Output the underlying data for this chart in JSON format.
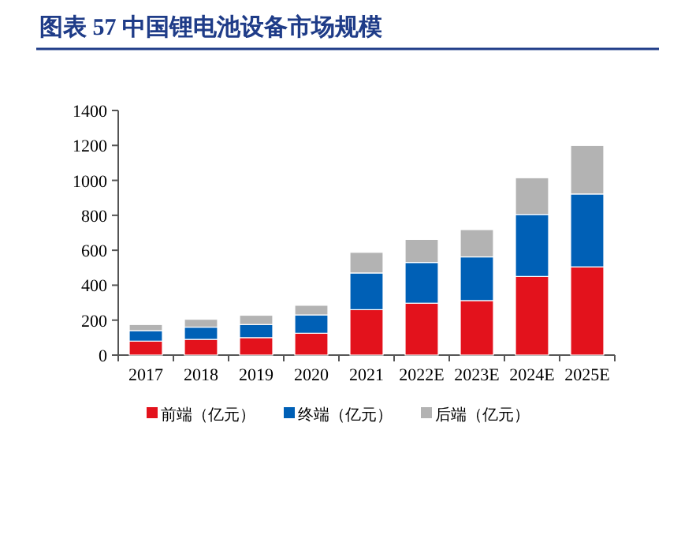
{
  "chart_data": {
    "type": "bar",
    "title": "图表 57 中国锂电池设备市场规模",
    "stacked": true,
    "categories": [
      "2017",
      "2018",
      "2019",
      "2020",
      "2021",
      "2022E",
      "2023E",
      "2024E",
      "2025E"
    ],
    "series": [
      {
        "name": "前端（亿元）",
        "color": "#e3121c",
        "values": [
          80,
          90,
          100,
          125,
          260,
          297,
          312,
          450,
          505
        ]
      },
      {
        "name": "终端（亿元）",
        "color": "#0060b6",
        "values": [
          60,
          70,
          75,
          105,
          210,
          233,
          250,
          355,
          417
        ]
      },
      {
        "name": "后端（亿元）",
        "color": "#b3b3b3",
        "values": [
          35,
          45,
          53,
          55,
          118,
          132,
          156,
          210,
          278
        ]
      }
    ],
    "ylim": [
      0,
      1400
    ],
    "yticks": [
      0,
      200,
      400,
      600,
      800,
      1000,
      1200,
      1400
    ],
    "grid": false,
    "legend": "bottom"
  }
}
